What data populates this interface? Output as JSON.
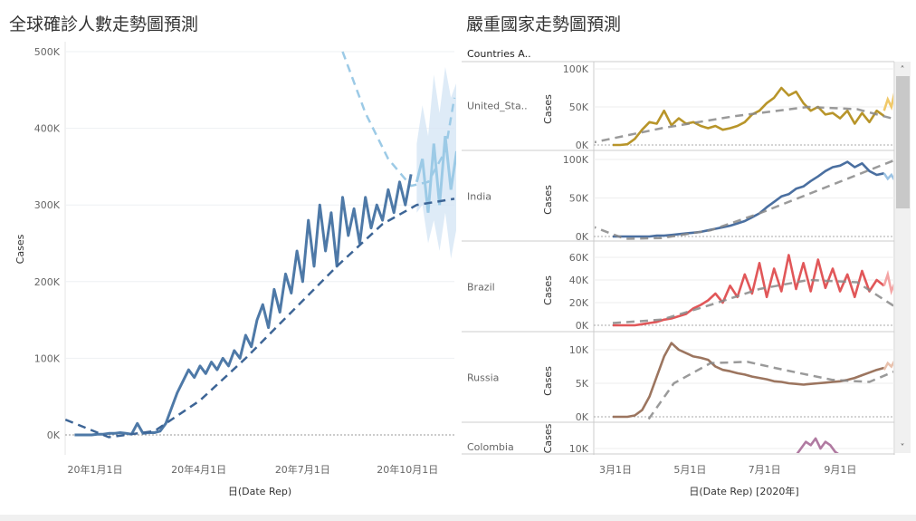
{
  "left_title": "全球確診人數走勢圖預測",
  "right_title": "嚴重國家走勢圖預測",
  "right_header": "Countries A..",
  "chart_data": [
    {
      "type": "line",
      "title": "全球確診人數走勢圖預測",
      "xlabel": "日(Date Rep)",
      "ylabel": "Cases",
      "x_ticks": [
        "20年1月1日",
        "20年4月1日",
        "20年7月1日",
        "20年10月1日"
      ],
      "y_ticks": [
        "0K",
        "100K",
        "200K",
        "300K",
        "400K",
        "500K"
      ],
      "ylim": [
        0,
        500
      ],
      "x_unit": "day of 2020",
      "y_unit": "thousand cases",
      "actual": {
        "start_day": -10,
        "step": 5,
        "values": [
          0,
          0,
          0,
          0,
          1,
          1,
          2,
          2,
          3,
          2,
          1,
          15,
          2,
          3,
          3,
          5,
          15,
          35,
          55,
          70,
          85,
          75,
          90,
          80,
          95,
          85,
          100,
          90,
          110,
          100,
          130,
          115,
          150,
          170,
          140,
          190,
          160,
          210,
          185,
          240,
          200,
          280,
          220,
          300,
          240,
          290,
          220,
          310,
          260,
          295,
          250,
          310,
          270,
          300,
          280,
          320,
          290,
          330,
          300,
          340
        ]
      },
      "forecast": {
        "start_day": 290,
        "step": 5,
        "values": [
          330,
          360,
          290,
          380,
          300,
          390,
          320,
          370
        ],
        "upper": [
          380,
          430,
          390,
          470,
          420,
          480,
          440,
          460
        ],
        "lower": [
          290,
          300,
          250,
          280,
          240,
          290,
          230,
          270
        ]
      },
      "trend": {
        "days": [
          -18,
          20,
          60,
          100,
          140,
          180,
          220,
          260,
          290,
          323
        ],
        "values": [
          20,
          -3,
          5,
          45,
          100,
          160,
          220,
          275,
          300,
          308
        ]
      },
      "forecast_trend": {
        "days": [
          225,
          245,
          265,
          285,
          300,
          315,
          323
        ],
        "values": [
          500,
          420,
          360,
          325,
          330,
          370,
          440
        ]
      }
    },
    {
      "type": "line",
      "xlabel": "日(Date Rep) [2020年]",
      "ylabel": "Cases",
      "x_ticks": [
        "3月1日",
        "5月1日",
        "7月1日",
        "9月1日"
      ],
      "x_tick_days": [
        60,
        121,
        182,
        244
      ],
      "panels": [
        {
          "country": "United_Sta..",
          "color": "#b8952a",
          "forecast_color": "#f0c96a",
          "y_ticks": [
            "0K",
            "50K",
            "100K"
          ],
          "ymax": 100,
          "start_day": 60,
          "step": 6,
          "values": [
            0,
            0,
            1,
            8,
            20,
            30,
            28,
            45,
            26,
            35,
            28,
            30,
            25,
            22,
            25,
            20,
            22,
            25,
            30,
            40,
            45,
            55,
            62,
            75,
            65,
            70,
            55,
            45,
            50,
            40,
            42,
            35,
            45,
            28,
            42,
            30,
            45,
            38
          ],
          "forecast": [
            45,
            60,
            50,
            72
          ],
          "trend_days": [
            40,
            100,
            160,
            220,
            260,
            300
          ],
          "trend": [
            2,
            22,
            38,
            50,
            47,
            30
          ]
        },
        {
          "country": "India",
          "color": "#4a6fa0",
          "forecast_color": "#9cc3e4",
          "y_ticks": [
            "0K",
            "50K",
            "100K"
          ],
          "ymax": 100,
          "start_day": 60,
          "step": 6,
          "values": [
            0,
            0,
            0,
            0,
            0,
            0,
            1,
            1,
            2,
            3,
            4,
            5,
            6,
            8,
            10,
            12,
            14,
            17,
            20,
            25,
            30,
            38,
            45,
            52,
            55,
            62,
            65,
            72,
            78,
            85,
            90,
            92,
            97,
            90,
            95,
            85,
            80,
            82
          ],
          "forecast": [
            82,
            75,
            80,
            72
          ],
          "trend_days": [
            40,
            70,
            100,
            140,
            180,
            220,
            260,
            300
          ],
          "trend": [
            15,
            -3,
            -2,
            8,
            30,
            55,
            80,
            105
          ]
        },
        {
          "country": "Brazil",
          "color": "#e15759",
          "forecast_color": "#f4a5a5",
          "y_ticks": [
            "0K",
            "20K",
            "40K",
            "60K"
          ],
          "ymax": 60,
          "start_day": 60,
          "step": 6,
          "values": [
            0,
            0,
            0,
            0,
            1,
            2,
            3,
            5,
            6,
            8,
            10,
            15,
            18,
            22,
            28,
            20,
            35,
            25,
            45,
            28,
            55,
            25,
            50,
            30,
            62,
            32,
            55,
            30,
            58,
            33,
            50,
            30,
            45,
            25,
            48,
            30,
            40,
            35
          ],
          "forecast": [
            35,
            45,
            30,
            38
          ],
          "trend_days": [
            60,
            100,
            140,
            180,
            220,
            260,
            300
          ],
          "trend": [
            2,
            5,
            18,
            32,
            40,
            38,
            10
          ]
        },
        {
          "country": "Russia",
          "color": "#9c755f",
          "forecast_color": "#e8c1ad",
          "y_ticks": [
            "0K",
            "5K",
            "10K"
          ],
          "ymax": 10,
          "start_day": 60,
          "step": 6,
          "values": [
            0,
            0,
            0,
            0.2,
            1,
            3,
            6,
            9,
            11,
            10,
            9.5,
            9,
            8.8,
            8.5,
            7.5,
            7,
            6.8,
            6.5,
            6.3,
            6,
            5.8,
            5.6,
            5.3,
            5.2,
            5,
            4.9,
            4.8,
            4.9,
            5,
            5.1,
            5.2,
            5.3,
            5.5,
            5.8,
            6.2,
            6.6,
            7,
            7.3
          ],
          "forecast": [
            7,
            8,
            7.5,
            8.5
          ],
          "trend_days": [
            83,
            110,
            140,
            170,
            200,
            240,
            270,
            300
          ],
          "trend": [
            -2,
            5,
            8,
            8.2,
            7,
            5.5,
            5.2,
            7.5
          ]
        },
        {
          "country": "Colombia",
          "color": "#b07aa1",
          "forecast_color": "#dcb8d0",
          "y_ticks": [
            "10K"
          ],
          "ymax": 10,
          "start_day": 210,
          "step": 4,
          "values": [
            8,
            10,
            12,
            11,
            13,
            10,
            12,
            11,
            9,
            8
          ]
        }
      ]
    }
  ]
}
